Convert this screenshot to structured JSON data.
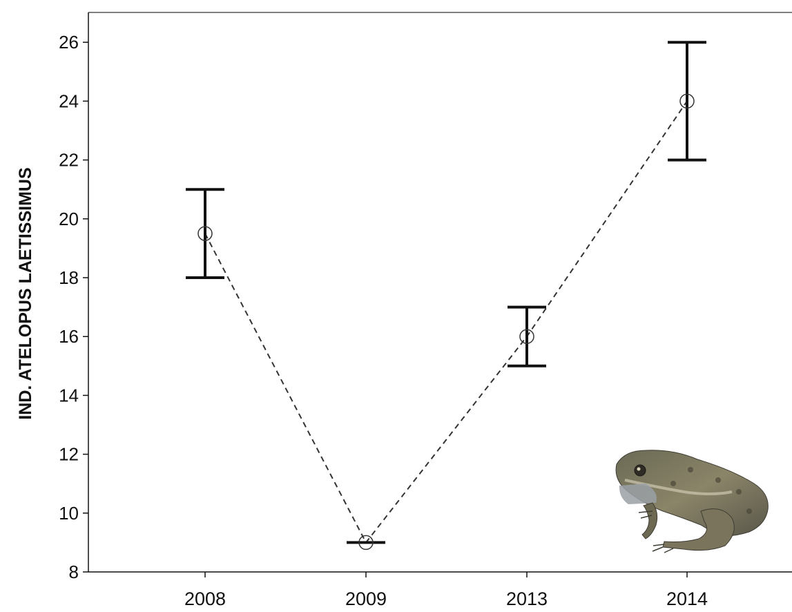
{
  "chart_data": {
    "type": "line",
    "title": "",
    "xlabel": "",
    "ylabel": "IND. ATELOPUS LAETISSIMUS",
    "categories": [
      "2008",
      "2009",
      "2013",
      "2014"
    ],
    "series": [
      {
        "values": [
          19.5,
          9,
          16,
          24
        ],
        "error_low": [
          18,
          9,
          15,
          22
        ],
        "error_high": [
          21,
          9,
          17,
          26
        ],
        "line_style": "dashed",
        "marker": "open-circle"
      }
    ],
    "yticks": [
      8,
      10,
      12,
      14,
      16,
      18,
      20,
      22,
      24,
      26
    ],
    "ylim": [
      8,
      26.8
    ],
    "grid": false,
    "legend": "none",
    "colors": {
      "line": "#333333",
      "errorbar": "#111111",
      "axis": "#111111",
      "text": "#111111"
    },
    "image": "frog-photo"
  }
}
